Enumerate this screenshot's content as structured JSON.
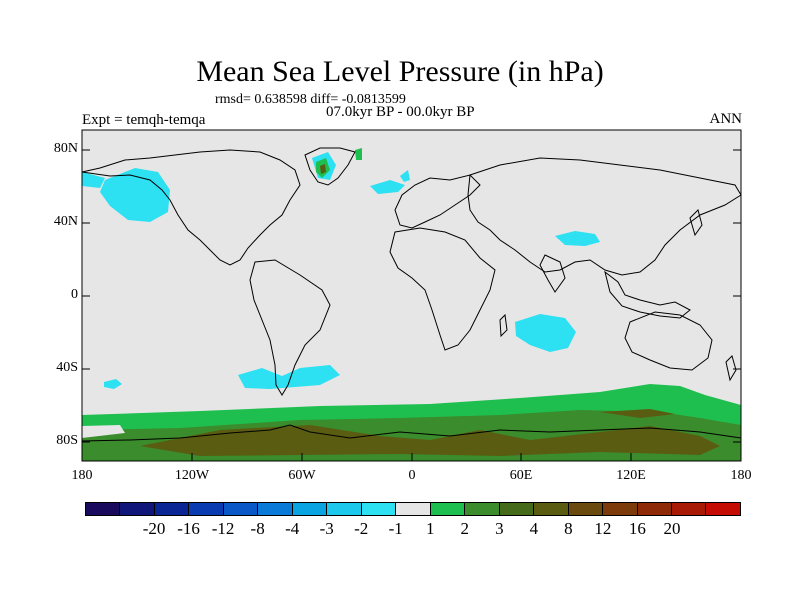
{
  "title": "Mean Sea Level Pressure (in hPa)",
  "stats": "rmsd= 0.638598 diff= -0.0813599",
  "period": "07.0kyr BP - 00.0kyr BP",
  "expt": "Expt = temqh-temqa",
  "season": "ANN",
  "y_ticks": [
    "80N",
    "40N",
    "0",
    "40S",
    "80S"
  ],
  "x_ticks": [
    "180",
    "120W",
    "60W",
    "0",
    "60E",
    "120E",
    "180"
  ],
  "colorbar": {
    "colors": [
      "#1a0a5e",
      "#10167a",
      "#0a2594",
      "#0a3bb0",
      "#0a57c8",
      "#0a7ad9",
      "#0ba4e2",
      "#1cc8ec",
      "#2de0f2",
      "#e6e6e6",
      "#1fbf4f",
      "#3a8c2c",
      "#456b1a",
      "#5a5c12",
      "#6a4a0e",
      "#7d3a0a",
      "#8f2a08",
      "#a81a06",
      "#c40c04"
    ],
    "labels": [
      "-20",
      "-16",
      "-12",
      "-8",
      "-4",
      "-3",
      "-2",
      "-1",
      "1",
      "2",
      "3",
      "4",
      "8",
      "12",
      "16",
      "20"
    ]
  },
  "colors": {
    "background": "#e6e6e6",
    "cyan": "#2de0f2",
    "green": "#1fbf4f",
    "dark_green": "#3a8c2c",
    "olive": "#5a5c12",
    "coast": "#000000"
  }
}
